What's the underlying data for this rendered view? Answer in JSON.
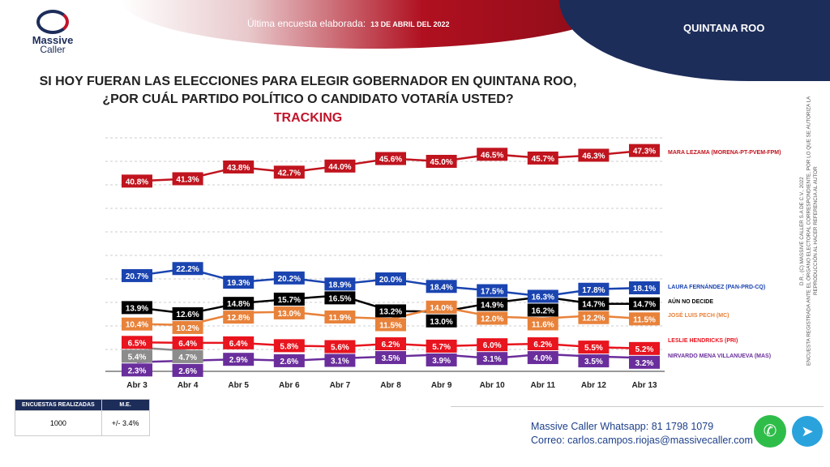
{
  "header": {
    "subtitle_prefix": "Última encuesta elaborada:",
    "date": "13 DE ABRIL DEL 2022",
    "region": "QUINTANA ROO",
    "logo_line1": "Massive",
    "logo_line2": "Caller"
  },
  "question": {
    "line1": "SI HOY FUERAN LAS ELECCIONES PARA ELEGIR GOBERNADOR EN QUINTANA ROO,",
    "line2": "¿POR CUÁL PARTIDO POLÍTICO O CANDIDATO VOTARÍA USTED?",
    "tracking": "TRACKING"
  },
  "side_note": {
    "line1": "D.R., (C) MASSIVE CALLER S.A DE C.V., 2022",
    "line2": "ENCUESTA REGISTRADA ANTE EL ÓRGANO ELECTORAL CORRESPONDIENTE, POR LO QUE SE AUTORIZA LA",
    "line3": "REPRODUCCIÓN AL HACER REFERENCIA AL AUTOR"
  },
  "chart_data": {
    "type": "line",
    "categories": [
      "Abr 3",
      "Abr 4",
      "Abr 5",
      "Abr 6",
      "Abr 7",
      "Abr 8",
      "Abr 9",
      "Abr 10",
      "Abr 11",
      "Abr 12",
      "Abr 13"
    ],
    "ylim": [
      0,
      50
    ],
    "grid": true,
    "legend": "right",
    "series": [
      {
        "name": "MARA LEZAMA (MORENA-PT-PVEM-FPM)",
        "color": "#c0141e",
        "values": [
          40.8,
          41.3,
          43.8,
          42.7,
          44.0,
          45.6,
          45.0,
          46.5,
          45.7,
          46.3,
          47.3
        ]
      },
      {
        "name": "LAURA FERNÁNDEZ (PAN-PRD-CQ)",
        "color": "#1a44b0",
        "values": [
          20.7,
          22.2,
          19.3,
          20.2,
          18.9,
          20.0,
          18.4,
          17.5,
          16.3,
          17.8,
          18.1
        ]
      },
      {
        "name": "AÚN NO DECIDE",
        "color": "#000000",
        "values": [
          13.9,
          12.6,
          14.8,
          15.7,
          16.5,
          13.2,
          13.0,
          14.9,
          16.2,
          14.7,
          14.7
        ]
      },
      {
        "name": "JOSÉ LUIS PECH (MC)",
        "color": "#e8823a",
        "values": [
          10.4,
          10.2,
          12.8,
          13.0,
          11.9,
          11.5,
          14.0,
          12.0,
          11.6,
          12.2,
          11.5
        ]
      },
      {
        "name": "LESLIE HENDRICKS (PRI)",
        "color": "#e8141e",
        "values": [
          6.5,
          6.4,
          6.4,
          5.8,
          5.6,
          6.2,
          5.7,
          6.0,
          6.2,
          5.5,
          5.2
        ]
      },
      {
        "name": "",
        "color": "#8c8c8c",
        "values": [
          5.4,
          4.7,
          null,
          null,
          null,
          null,
          null,
          null,
          null,
          null,
          null
        ]
      },
      {
        "name": "NIRVARDO MENA VILLANUEVA (MAS)",
        "color": "#6a2e9c",
        "values": [
          2.3,
          2.6,
          2.9,
          2.6,
          3.1,
          3.5,
          3.9,
          3.1,
          4.0,
          3.5,
          3.2
        ]
      }
    ]
  },
  "footer": {
    "col1": "ENCUESTAS REALIZADAS",
    "col2": "M.E.",
    "n": "1000",
    "me": "+/- 3.4%",
    "whatsapp_label": "Massive Caller Whatsapp:",
    "whatsapp": "81 1798 1079",
    "email_label": "Correo:",
    "email": "carlos.campos.riojas@massivecaller.com"
  }
}
